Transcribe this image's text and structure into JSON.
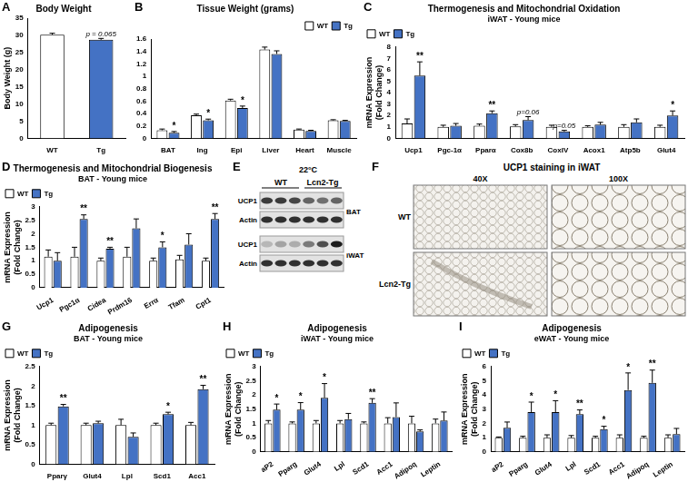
{
  "chart_data": [
    {
      "panel": "A",
      "type": "bar",
      "title": "Body Weight",
      "y_label": "Body Weight (g)",
      "categories": [
        "WT",
        "Tg"
      ],
      "values": [
        30.2,
        28.7
      ],
      "colors": [
        "#ffffff",
        "#4472c4"
      ],
      "errors": [
        0.4,
        0.4
      ],
      "annotations": [
        null,
        "p = 0.065"
      ],
      "ylim": [
        0,
        35
      ],
      "yticks": [
        0,
        5,
        10,
        15,
        20,
        25,
        30,
        35
      ],
      "grid": false
    },
    {
      "panel": "B",
      "type": "bar",
      "title": "Tissue Weight (grams)",
      "categories": [
        "BAT",
        "Ing",
        "Epi",
        "Liver",
        "Heart",
        "Muscle"
      ],
      "series": [
        {
          "name": "WT",
          "color": "#ffffff",
          "values": [
            0.13,
            0.37,
            0.61,
            1.43,
            0.14,
            0.29
          ],
          "errors": [
            0.02,
            0.02,
            0.02,
            0.04,
            0.01,
            0.01
          ],
          "annotations": [
            null,
            null,
            null,
            null,
            null,
            null
          ]
        },
        {
          "name": "Tg",
          "color": "#4472c4",
          "values": [
            0.09,
            0.29,
            0.49,
            1.36,
            0.12,
            0.28
          ],
          "errors": [
            0.02,
            0.02,
            0.03,
            0.05,
            0.01,
            0.01
          ],
          "annotations": [
            "*",
            "*",
            "*",
            null,
            null,
            null
          ]
        }
      ],
      "ylim": [
        0,
        1.6
      ],
      "yticks": [
        0,
        0.2,
        0.4,
        0.6,
        0.8,
        1,
        1.2,
        1.4,
        1.6
      ],
      "grid": false,
      "legend": "top-right"
    },
    {
      "panel": "C",
      "type": "bar",
      "title": "Thermogenesis and Mitochondrial Oxidation",
      "subtitle": "iWAT - Young mice",
      "y_label": [
        "mRNA Expression",
        "(Fold Change)"
      ],
      "categories": [
        "Ucp1",
        "Pgc-1α",
        "Pparα",
        "Cox8b",
        "CoxIV",
        "Acox1",
        "Atp5b",
        "Glut4"
      ],
      "series": [
        {
          "name": "WT",
          "color": "#ffffff",
          "values": [
            1.3,
            1.0,
            1.1,
            1.05,
            1.0,
            1.0,
            1.0,
            1.0
          ],
          "errors": [
            0.4,
            0.15,
            0.15,
            0.15,
            0.15,
            0.1,
            0.2,
            0.15
          ],
          "annotations": [
            null,
            null,
            null,
            null,
            null,
            null,
            null,
            null
          ]
        },
        {
          "name": "Tg",
          "color": "#4472c4",
          "values": [
            5.5,
            1.1,
            2.2,
            1.6,
            0.6,
            1.2,
            1.4,
            2.0
          ],
          "errors": [
            1.2,
            0.2,
            0.2,
            0.3,
            0.1,
            0.2,
            0.3,
            0.4
          ],
          "annotations": [
            "**",
            null,
            "**",
            "p=0.06",
            "p=0.05",
            null,
            null,
            "*"
          ]
        }
      ],
      "ylim": [
        0,
        8
      ],
      "yticks": [
        0,
        1,
        2,
        3,
        4,
        5,
        6,
        7,
        8
      ],
      "grid": false,
      "legend": "top-left"
    },
    {
      "panel": "D",
      "type": "bar",
      "title": "Thermogenesis and Mitochondrial Biogenesis",
      "subtitle": "BAT - Young mice",
      "y_label": [
        "mRNA Expression",
        "(Fold Change)"
      ],
      "categories": [
        "Ucp1",
        "Pgc1α",
        "Cidea",
        "Prdm16",
        "Errα",
        "Tfam",
        "Cpt1"
      ],
      "series": [
        {
          "name": "WT",
          "color": "#ffffff",
          "values": [
            1.15,
            1.15,
            1.0,
            1.15,
            1.0,
            1.05,
            1.0
          ],
          "errors": [
            0.25,
            0.35,
            0.1,
            0.35,
            0.1,
            0.15,
            0.1
          ],
          "annotations": [
            null,
            null,
            null,
            null,
            null,
            null,
            null
          ]
        },
        {
          "name": "Tg",
          "color": "#4472c4",
          "values": [
            1.0,
            2.55,
            1.45,
            2.2,
            1.5,
            1.6,
            2.55
          ],
          "errors": [
            0.3,
            0.15,
            0.05,
            0.35,
            0.2,
            0.4,
            0.2
          ],
          "annotations": [
            null,
            "**",
            "**",
            null,
            "*",
            null,
            "**"
          ]
        }
      ],
      "ylim": [
        0,
        3
      ],
      "yticks": [
        0,
        0.5,
        1,
        1.5,
        2,
        2.5,
        3
      ],
      "grid": false,
      "legend": "top-left"
    },
    {
      "panel": "G",
      "type": "bar",
      "title": "Adipogenesis",
      "subtitle": "BAT - Young mice",
      "y_label": [
        "mRNA Expression",
        "(Fold Change)"
      ],
      "categories": [
        "Pparγ",
        "Glut4",
        "Lpl",
        "Scd1",
        "Acc1"
      ],
      "series": [
        {
          "name": "WT",
          "color": "#ffffff",
          "values": [
            1.0,
            1.0,
            1.0,
            1.0,
            1.0
          ],
          "errors": [
            0.05,
            0.05,
            0.15,
            0.05,
            0.07
          ],
          "annotations": [
            null,
            null,
            null,
            null,
            null
          ]
        },
        {
          "name": "Tg",
          "color": "#4472c4",
          "values": [
            1.48,
            1.05,
            0.7,
            1.28,
            1.92
          ],
          "errors": [
            0.05,
            0.05,
            0.1,
            0.05,
            0.1
          ],
          "annotations": [
            "**",
            null,
            null,
            "*",
            "**"
          ]
        }
      ],
      "ylim": [
        0,
        2.5
      ],
      "yticks": [
        0,
        0.5,
        1,
        1.5,
        2,
        2.5
      ],
      "grid": false,
      "legend": "top-left"
    },
    {
      "panel": "H",
      "type": "bar",
      "title": "Adipogenesis",
      "subtitle": "iWAT - Young mice",
      "y_label": [
        "mRNA Expression",
        "(Fold Change)"
      ],
      "categories": [
        "aP2",
        "Pparg",
        "Glut4",
        "Lpl",
        "Scd1",
        "Acc1",
        "Adipoq",
        "Leptin"
      ],
      "series": [
        {
          "name": "WT",
          "color": "#ffffff",
          "values": [
            1.0,
            1.0,
            1.0,
            1.0,
            1.0,
            1.0,
            1.0,
            1.0
          ],
          "errors": [
            0.1,
            0.05,
            0.1,
            0.1,
            0.05,
            0.2,
            0.25,
            0.15
          ],
          "annotations": [
            null,
            null,
            null,
            null,
            null,
            null,
            null,
            null
          ]
        },
        {
          "name": "Tg",
          "color": "#4472c4",
          "values": [
            1.48,
            1.48,
            1.9,
            1.15,
            1.72,
            1.22,
            0.72,
            1.1
          ],
          "errors": [
            0.2,
            0.25,
            0.5,
            0.2,
            0.15,
            0.5,
            0.05,
            0.3
          ],
          "annotations": [
            "*",
            "*",
            "*",
            null,
            "**",
            null,
            null,
            null
          ]
        }
      ],
      "ylim": [
        0,
        3
      ],
      "yticks": [
        0,
        0.5,
        1,
        1.5,
        2,
        2.5,
        3
      ],
      "grid": false,
      "legend": "top-left"
    },
    {
      "panel": "I",
      "type": "bar",
      "title": "Adipogenesis",
      "subtitle": "eWAT - Young mice",
      "y_label": [
        "mRNA Expression",
        "(Fold Change)"
      ],
      "categories": [
        "aP2",
        "Pparg",
        "Glut4",
        "Lpl",
        "Scd1",
        "Acc1",
        "Adipoq",
        "Leptin"
      ],
      "series": [
        {
          "name": "WT",
          "color": "#ffffff",
          "values": [
            1.0,
            1.0,
            1.0,
            1.0,
            1.0,
            1.0,
            1.0,
            1.0
          ],
          "errors": [
            0.05,
            0.1,
            0.2,
            0.15,
            0.1,
            0.2,
            0.1,
            0.2
          ],
          "annotations": [
            null,
            null,
            null,
            null,
            null,
            null,
            null,
            null
          ]
        },
        {
          "name": "Tg",
          "color": "#4472c4",
          "values": [
            1.7,
            2.8,
            2.8,
            2.65,
            1.6,
            4.35,
            4.85,
            1.25
          ],
          "errors": [
            0.4,
            0.7,
            0.8,
            0.3,
            0.2,
            1.2,
            0.9,
            0.4
          ],
          "annotations": [
            null,
            "*",
            "*",
            "**",
            "*",
            "*",
            "**",
            null
          ]
        }
      ],
      "ylim": [
        0,
        6
      ],
      "yticks": [
        0,
        1,
        2,
        3,
        4,
        5,
        6
      ],
      "grid": false,
      "legend": "top-left"
    }
  ],
  "blot": {
    "panel": "E",
    "title": "22°C",
    "columns": [
      "WT",
      "Lcn2-Tg"
    ],
    "groups": [
      {
        "tissue": "BAT",
        "rows": [
          "UCP1",
          "Actin"
        ]
      },
      {
        "tissue": "iWAT",
        "rows": [
          "UCP1",
          "Actin"
        ]
      }
    ]
  },
  "staining": {
    "panel": "F",
    "title": "UCP1 staining in iWAT",
    "columns": [
      "40X",
      "100X"
    ],
    "rows": [
      "WT",
      "Lcn2-Tg"
    ]
  }
}
